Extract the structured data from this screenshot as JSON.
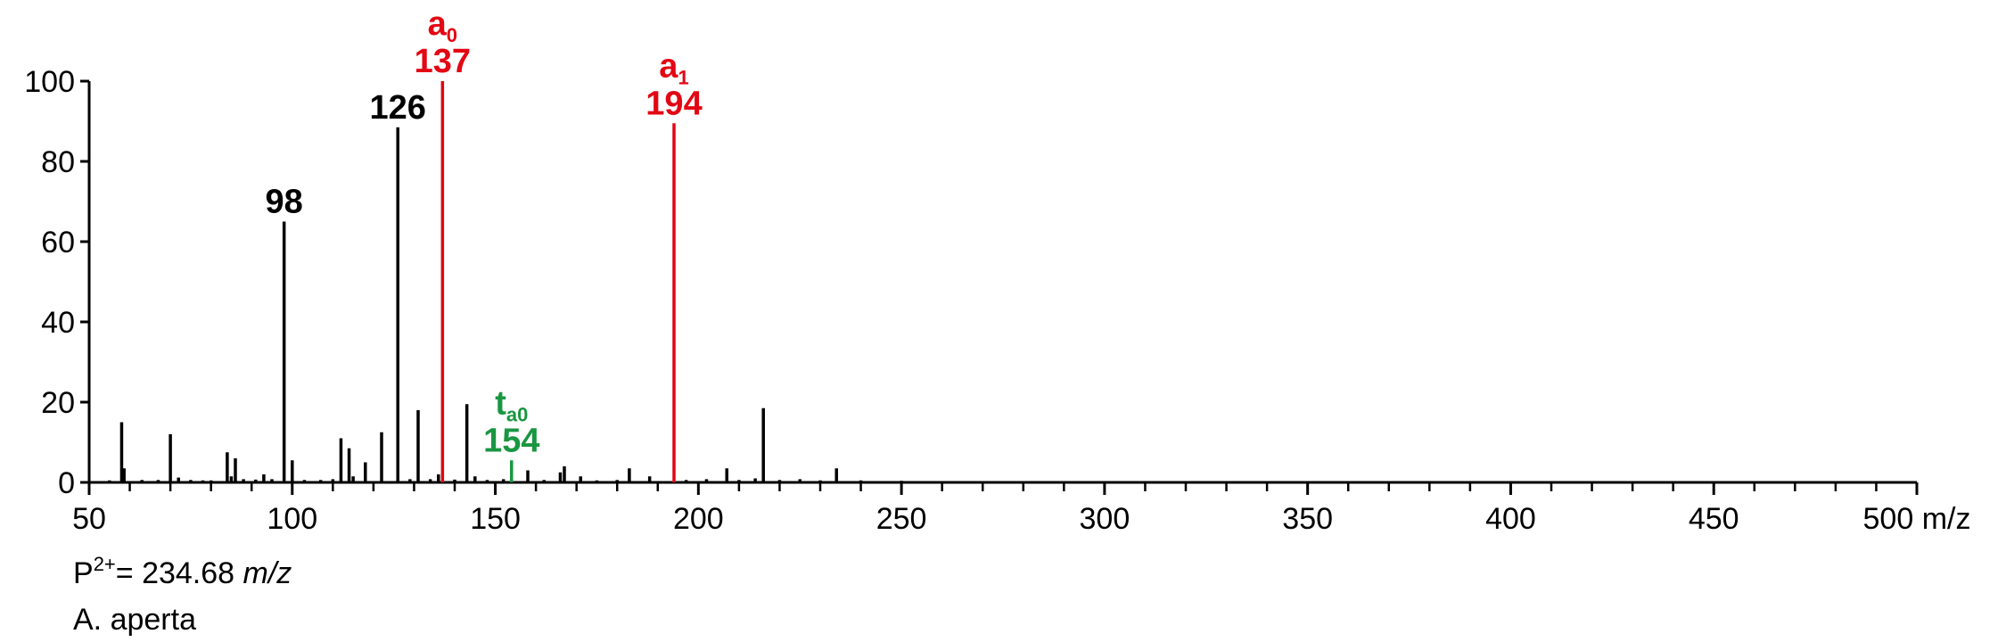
{
  "chart_data": {
    "type": "bar",
    "subtype": "mass-spectrum-stick",
    "xlabel_unit": "m/z",
    "xlim": [
      50,
      500
    ],
    "ylim": [
      0,
      100
    ],
    "x_ticks": [
      50,
      100,
      150,
      200,
      250,
      300,
      350,
      400,
      450,
      500
    ],
    "y_ticks": [
      0,
      20,
      40,
      60,
      80,
      100
    ],
    "grid": false,
    "series": [
      {
        "color": "#000000",
        "points": [
          {
            "x": 55,
            "y": 0.5
          },
          {
            "x": 58,
            "y": 15
          },
          {
            "x": 58.6,
            "y": 3.5
          },
          {
            "x": 63,
            "y": 0.6
          },
          {
            "x": 67,
            "y": 0.6
          },
          {
            "x": 70,
            "y": 12
          },
          {
            "x": 72,
            "y": 1.2
          },
          {
            "x": 75,
            "y": 0.6
          },
          {
            "x": 78,
            "y": 0.5
          },
          {
            "x": 80,
            "y": 0.5
          },
          {
            "x": 84,
            "y": 7.5
          },
          {
            "x": 85,
            "y": 1.5
          },
          {
            "x": 86,
            "y": 6
          },
          {
            "x": 88,
            "y": 0.8
          },
          {
            "x": 91,
            "y": 0.7
          },
          {
            "x": 93,
            "y": 2
          },
          {
            "x": 95,
            "y": 0.8
          },
          {
            "x": 98,
            "y": 65
          },
          {
            "x": 100,
            "y": 5.5
          },
          {
            "x": 103,
            "y": 0.6
          },
          {
            "x": 107,
            "y": 0.6
          },
          {
            "x": 110,
            "y": 0.8
          },
          {
            "x": 112,
            "y": 11
          },
          {
            "x": 114,
            "y": 8.5
          },
          {
            "x": 115,
            "y": 1.5
          },
          {
            "x": 118,
            "y": 5
          },
          {
            "x": 122,
            "y": 12.5
          },
          {
            "x": 126,
            "y": 88.5
          },
          {
            "x": 129,
            "y": 0.8
          },
          {
            "x": 131,
            "y": 18
          },
          {
            "x": 134,
            "y": 0.8
          },
          {
            "x": 136,
            "y": 2
          },
          {
            "x": 140,
            "y": 0.7
          },
          {
            "x": 143,
            "y": 19.5
          },
          {
            "x": 145,
            "y": 1.5
          },
          {
            "x": 148,
            "y": 0.6
          },
          {
            "x": 152,
            "y": 0.8
          },
          {
            "x": 158,
            "y": 3
          },
          {
            "x": 162,
            "y": 0.6
          },
          {
            "x": 166,
            "y": 2.5
          },
          {
            "x": 167,
            "y": 4
          },
          {
            "x": 171,
            "y": 1.5
          },
          {
            "x": 175,
            "y": 0.5
          },
          {
            "x": 180,
            "y": 0.6
          },
          {
            "x": 183,
            "y": 3.5
          },
          {
            "x": 188,
            "y": 1.5
          },
          {
            "x": 197,
            "y": 0.6
          },
          {
            "x": 202,
            "y": 0.8
          },
          {
            "x": 207,
            "y": 3.5
          },
          {
            "x": 210,
            "y": 0.6
          },
          {
            "x": 214,
            "y": 1
          },
          {
            "x": 216,
            "y": 18.5
          },
          {
            "x": 220,
            "y": 0.6
          },
          {
            "x": 225,
            "y": 0.8
          },
          {
            "x": 230,
            "y": 0.5
          },
          {
            "x": 234,
            "y": 3.5
          },
          {
            "x": 240,
            "y": 0.5
          },
          {
            "x": 250,
            "y": 0.4
          }
        ]
      },
      {
        "color": "#e30613",
        "points": [
          {
            "x": 137,
            "y": 100
          },
          {
            "x": 194,
            "y": 89.5
          }
        ]
      },
      {
        "color": "#1a9641",
        "points": [
          {
            "x": 154,
            "y": 5.5
          }
        ]
      }
    ],
    "peak_labels": [
      {
        "x": 98,
        "y": 65,
        "text": "98",
        "color": "#000000"
      },
      {
        "x": 126,
        "y": 88.5,
        "text": "126",
        "color": "#000000"
      }
    ],
    "ion_labels": [
      {
        "x": 137,
        "y": 100,
        "ion": "a",
        "sub": "0",
        "mass": "137",
        "color": "#e30613"
      },
      {
        "x": 194,
        "y": 89.5,
        "ion": "a",
        "sub": "1",
        "mass": "194",
        "color": "#e30613"
      },
      {
        "x": 154,
        "y": 5.5,
        "ion": "t",
        "sub": "a0",
        "mass": "154",
        "color": "#1a9641"
      }
    ]
  },
  "caption": {
    "precursor_prefix": "P",
    "precursor_charge": "2+",
    "precursor_value": "= 234.68 ",
    "precursor_unit": "m/z",
    "species": "A. aperta"
  }
}
